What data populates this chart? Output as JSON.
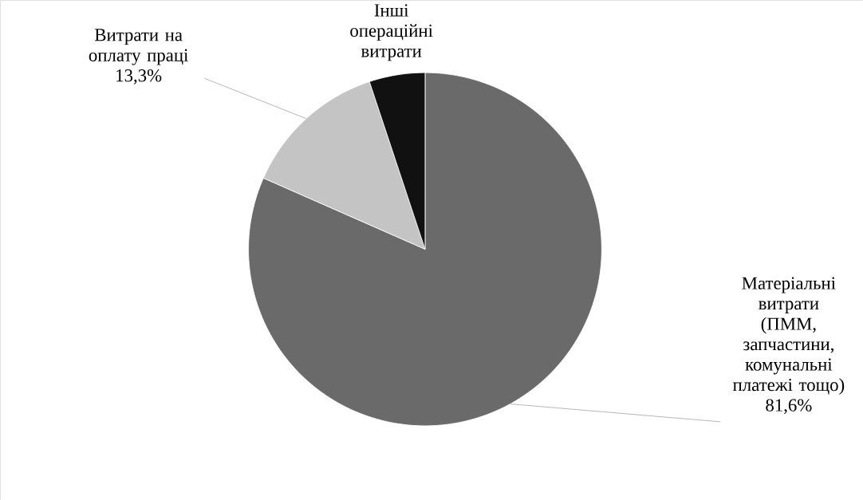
{
  "chart_data": {
    "type": "pie",
    "categories": [
      "Матеріальні витрати (ПММ, запчастини, комунальні платежі тощо)",
      "Витрати на оплату праці",
      "Інші операційні витрати"
    ],
    "values": [
      81.6,
      13.3,
      5.1
    ],
    "colors": [
      "#6a6a6a",
      "#c4c4c4",
      "#111111"
    ],
    "value_labels": [
      "81,6%",
      "13,3%",
      null
    ]
  }
}
